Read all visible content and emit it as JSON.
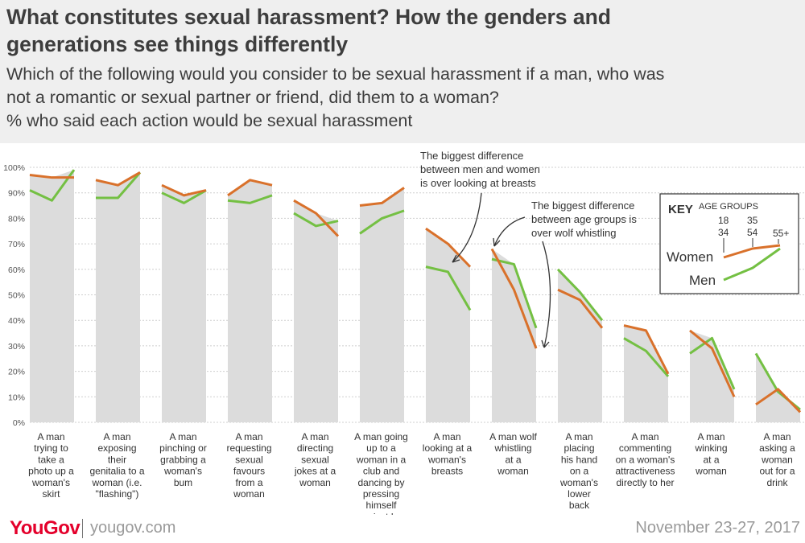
{
  "header": {
    "title_line1": "What constitutes sexual harassment? How the genders and",
    "title_line2": "generations see things differently",
    "subtitle_line1": "Which of the following would you consider to be sexual harassment if a man, who was",
    "subtitle_line2": "not a romantic or sexual partner or friend, did them to a woman?",
    "subtitle_line3": "% who said each action would be sexual harassment"
  },
  "footer": {
    "logo_you": "YouGov",
    "logo_gov": "",
    "site": "yougov.com",
    "date": "November 23-27, 2017"
  },
  "colors": {
    "women": "#d9712b",
    "men": "#74c043",
    "area": "#dcdcdc",
    "header_bg": "#efefef"
  },
  "annotations": {
    "breasts_line1": "The biggest difference",
    "breasts_line2": "between men and women",
    "breasts_line3": "is over looking at breasts",
    "wolf_line1": "The biggest difference",
    "wolf_line2": "between age groups is",
    "wolf_line3": "over wolf whistling"
  },
  "key": {
    "title": "KEY",
    "age_groups_label": "AGE GROUPS",
    "age_top": [
      "18",
      "35",
      "55+"
    ],
    "age_bottom": [
      "34",
      "54",
      ""
    ],
    "women_label": "Women",
    "men_label": "Men"
  },
  "chart_data": {
    "type": "line",
    "ylim": [
      0,
      100
    ],
    "yticks": [
      "0%",
      "10%",
      "20%",
      "30%",
      "40%",
      "50%",
      "60%",
      "70%",
      "80%",
      "90%",
      "100%"
    ],
    "groups": [
      "18-34",
      "35-54",
      "55+"
    ],
    "categories": [
      {
        "label": [
          "A man",
          "trying to",
          "take a",
          "photo up a",
          "woman's",
          "skirt"
        ],
        "women": [
          97,
          96,
          96
        ],
        "men": [
          91,
          87,
          99
        ]
      },
      {
        "label": [
          "A man",
          "exposing",
          "their",
          "genitalia to a",
          "woman (i.e.",
          "\"flashing\")"
        ],
        "women": [
          95,
          93,
          98
        ],
        "men": [
          88,
          88,
          98
        ]
      },
      {
        "label": [
          "A man",
          "pinching or",
          "grabbing a",
          "woman's",
          "bum"
        ],
        "women": [
          93,
          89,
          91
        ],
        "men": [
          90,
          86,
          91
        ]
      },
      {
        "label": [
          "A man",
          "requesting",
          "sexual",
          "favours",
          "from a",
          "woman"
        ],
        "women": [
          89,
          95,
          93
        ],
        "men": [
          87,
          86,
          89
        ]
      },
      {
        "label": [
          "A man",
          "directing",
          "sexual",
          "jokes at a",
          "woman"
        ],
        "women": [
          87,
          82,
          73
        ],
        "men": [
          82,
          77,
          79
        ]
      },
      {
        "label": [
          "A man going",
          "up to a",
          "woman in a",
          "club and",
          "dancing by",
          "pressing",
          "himself",
          "against her"
        ],
        "women": [
          85,
          86,
          92
        ],
        "men": [
          74,
          80,
          83
        ]
      },
      {
        "label": [
          "A man",
          "looking at a",
          "woman's",
          "breasts"
        ],
        "women": [
          76,
          70,
          61
        ],
        "men": [
          61,
          59,
          44
        ]
      },
      {
        "label": [
          "A man wolf",
          "whistling",
          "at a",
          "woman"
        ],
        "women": [
          68,
          52,
          29
        ],
        "men": [
          64,
          62,
          37
        ]
      },
      {
        "label": [
          "A man",
          "placing",
          "his hand",
          "on a",
          "woman's",
          "lower",
          "back"
        ],
        "women": [
          52,
          48,
          37
        ],
        "men": [
          60,
          51,
          40
        ]
      },
      {
        "label": [
          "A man",
          "commenting",
          "on a woman's",
          "attractiveness",
          "directly to her"
        ],
        "women": [
          38,
          36,
          19
        ],
        "men": [
          33,
          28,
          18
        ]
      },
      {
        "label": [
          "A man",
          "winking",
          "at a",
          "woman"
        ],
        "women": [
          36,
          29,
          10
        ],
        "men": [
          27,
          33,
          13
        ]
      },
      {
        "label": [
          "A man",
          "asking a",
          "woman",
          "out for a",
          "drink"
        ],
        "women": [
          7,
          13,
          4
        ],
        "men": [
          27,
          12,
          5
        ]
      }
    ],
    "series": [
      {
        "name": "Women",
        "color": "#d9712b"
      },
      {
        "name": "Men",
        "color": "#74c043"
      }
    ]
  }
}
